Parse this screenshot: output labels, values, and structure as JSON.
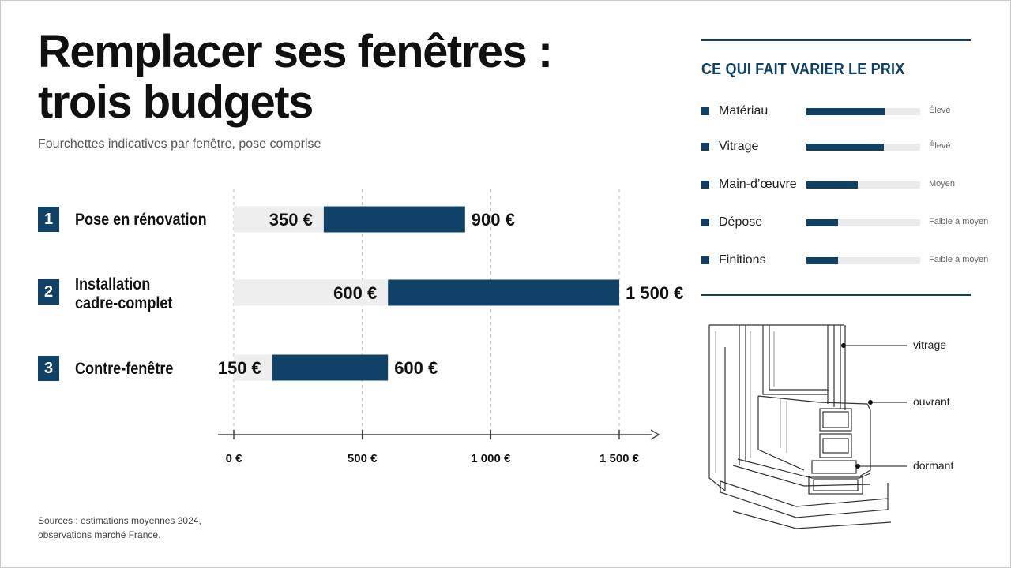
{
  "header": {
    "title_line1": "Remplacer ses fenêtres :",
    "title_line2": "trois budgets",
    "subtitle": "Fourchettes indicatives par fenêtre, pose comprise"
  },
  "chart_data": {
    "type": "bar",
    "orientation": "horizontal-range",
    "title": "Remplacer ses fenêtres : trois budgets",
    "subtitle": "Fourchettes indicatives par fenêtre, pose comprise",
    "categories": [
      {
        "number": "1",
        "lines": [
          "Pose en rénovation"
        ]
      },
      {
        "number": "2",
        "lines": [
          "Installation",
          "cadre-complet"
        ]
      },
      {
        "number": "3",
        "lines": [
          "Contre-fenêtre"
        ]
      }
    ],
    "ranges": [
      {
        "min": 350,
        "max": 900,
        "min_label": "350 €",
        "max_label": "900 €"
      },
      {
        "min": 600,
        "max": 1500,
        "min_label": "600 €",
        "max_label": "1 500 €"
      },
      {
        "min": 150,
        "max": 600,
        "min_label": "150 €",
        "max_label": "600 €"
      }
    ],
    "xlim": [
      0,
      1500
    ],
    "xticks": [
      {
        "value": 0,
        "label": "0 €"
      },
      {
        "value": 500,
        "label": "500 €"
      },
      {
        "value": 1000,
        "label": "1 000 €"
      },
      {
        "value": 1500,
        "label": "1 500 €"
      }
    ],
    "grid": "vertical-dashed",
    "colors": {
      "bar": "#0f4266",
      "track": "#eeeeee",
      "axis": "#444444"
    }
  },
  "sources": {
    "line1": "Sources : estimations moyennes 2024,",
    "line2": "observations marché France."
  },
  "factors": {
    "title": "CE QUI FAIT VARIER LE PRIX",
    "items": [
      {
        "name": "Matériau",
        "level": "Élevé",
        "fraction": 0.69
      },
      {
        "name": "Vitrage",
        "level": "Élevé",
        "fraction": 0.68
      },
      {
        "name": "Main-d’œuvre",
        "level": "Moyen",
        "fraction": 0.45
      },
      {
        "name": "Dépose",
        "level": "Faible à moyen",
        "fraction": 0.28
      },
      {
        "name": "Finitions",
        "level": "Faible à moyen",
        "fraction": 0.28
      }
    ]
  },
  "illustration": {
    "callouts": {
      "vitrage": "vitrage",
      "ouvrant": "ouvrant",
      "dormant": "dormant"
    }
  }
}
